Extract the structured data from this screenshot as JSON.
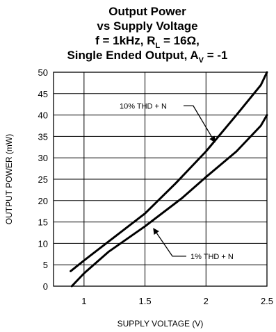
{
  "chart_data": {
    "type": "line",
    "title": {
      "line1": "Output Power",
      "line2": "vs Supply Voltage",
      "line3_pre": "f = 1kHz, R",
      "line3_sub": "L",
      "line3_post": " = 16Ω,",
      "line4_pre": "Single Ended Output, A",
      "line4_sub": "V",
      "line4_post": " = -1"
    },
    "xlabel": "SUPPLY VOLTAGE (V)",
    "ylabel": "OUTPUT POWER (mW)",
    "xlim": [
      0.75,
      2.5
    ],
    "ylim": [
      0,
      50
    ],
    "xticks": [
      1,
      1.5,
      2,
      2.5
    ],
    "xtick_labels": [
      "1",
      "1.5",
      "2",
      "2.5"
    ],
    "yticks": [
      0,
      5,
      10,
      15,
      20,
      25,
      30,
      35,
      40,
      45,
      50
    ],
    "ytick_labels": [
      "0",
      "5",
      "10",
      "15",
      "20",
      "25",
      "30",
      "35",
      "40",
      "45",
      "50"
    ],
    "grid": true,
    "series": [
      {
        "name": "10% THD + N",
        "x": [
          0.89,
          1.0,
          1.25,
          1.5,
          1.75,
          2.0,
          2.25,
          2.45,
          2.5
        ],
        "y": [
          3.5,
          6.0,
          11.5,
          17.0,
          24.0,
          31.5,
          40.0,
          47.0,
          50.0
        ]
      },
      {
        "name": "1% THD + N",
        "x": [
          0.9,
          1.0,
          1.2,
          1.5,
          1.8,
          2.0,
          2.25,
          2.45,
          2.5
        ],
        "y": [
          0.0,
          3.0,
          8.0,
          14.0,
          20.5,
          25.5,
          31.5,
          37.5,
          40.0
        ]
      }
    ]
  }
}
